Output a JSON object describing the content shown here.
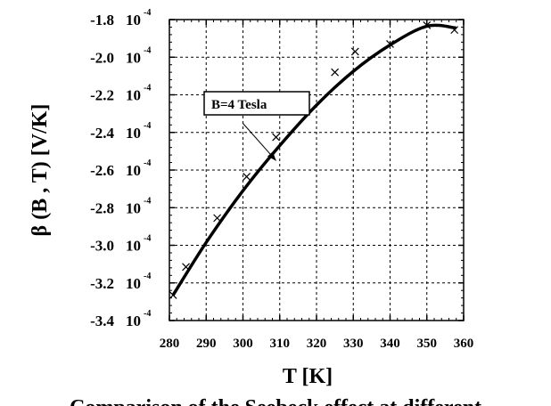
{
  "chart_data": {
    "type": "line",
    "xlabel": "T  [K]",
    "ylabel": "β (B , T) [V/K]",
    "xlim": [
      280,
      360
    ],
    "ylim": [
      -0.00034,
      -0.00018
    ],
    "grid": true,
    "x_ticks": [
      280,
      290,
      300,
      310,
      320,
      330,
      340,
      350,
      360
    ],
    "x_tick_labels": [
      "280",
      "290",
      "300",
      "310",
      "320",
      "330",
      "340",
      "350",
      "360"
    ],
    "y_ticks": [
      -0.00018,
      -0.0002,
      -0.00022,
      -0.00024,
      -0.00026,
      -0.00028,
      -0.0003,
      -0.00032,
      -0.00034
    ],
    "y_tick_labels": [
      {
        "mantissa": "-1.8",
        "base": "10",
        "exp": "-4"
      },
      {
        "mantissa": "-2.0",
        "base": "10",
        "exp": "-4"
      },
      {
        "mantissa": "-2.2",
        "base": "10",
        "exp": "-4"
      },
      {
        "mantissa": "-2.4",
        "base": "10",
        "exp": "-4"
      },
      {
        "mantissa": "-2.6",
        "base": "10",
        "exp": "-4"
      },
      {
        "mantissa": "-2.8",
        "base": "10",
        "exp": "-4"
      },
      {
        "mantissa": "-3.0",
        "base": "10",
        "exp": "-4"
      },
      {
        "mantissa": "-3.2",
        "base": "10",
        "exp": "-4"
      },
      {
        "mantissa": "-3.4",
        "base": "10",
        "exp": "-4"
      }
    ],
    "series": [
      {
        "name": "B=4  Tesla",
        "x": [
          281,
          284.5,
          293,
          301,
          309,
          317,
          325,
          330.5,
          340,
          350,
          357.5
        ],
        "y": [
          -0.0003265,
          -0.0003115,
          -0.0002855,
          -0.0002635,
          -0.0002425,
          -0.000224,
          -0.000208,
          -0.000197,
          -0.000193,
          -0.000183,
          -0.0001855
        ]
      }
    ],
    "markers": {
      "x": [
        281,
        284.5,
        293,
        301,
        309,
        317,
        325,
        330.5,
        340,
        350,
        357.5
      ],
      "y": [
        -0.0003265,
        -0.0003115,
        -0.0002855,
        -0.0002635,
        -0.0002425,
        -0.000224,
        -0.000208,
        -0.000197,
        -0.000193,
        -0.000183,
        -0.0001855
      ]
    },
    "curve": {
      "x": [
        281,
        290,
        300,
        310,
        320,
        330,
        340,
        350,
        358
      ],
      "y": [
        -0.0003265,
        -0.0002985,
        -0.000271,
        -0.000247,
        -0.0002255,
        -0.0002075,
        -0.0001935,
        -0.0001835,
        -0.0001845
      ]
    },
    "annotation": {
      "text": "B=4  Tesla",
      "arrow_target": {
        "x": 309,
        "y": -0.000255
      }
    }
  },
  "caption_fragment": "Comparison of the Seebeck effect at different"
}
